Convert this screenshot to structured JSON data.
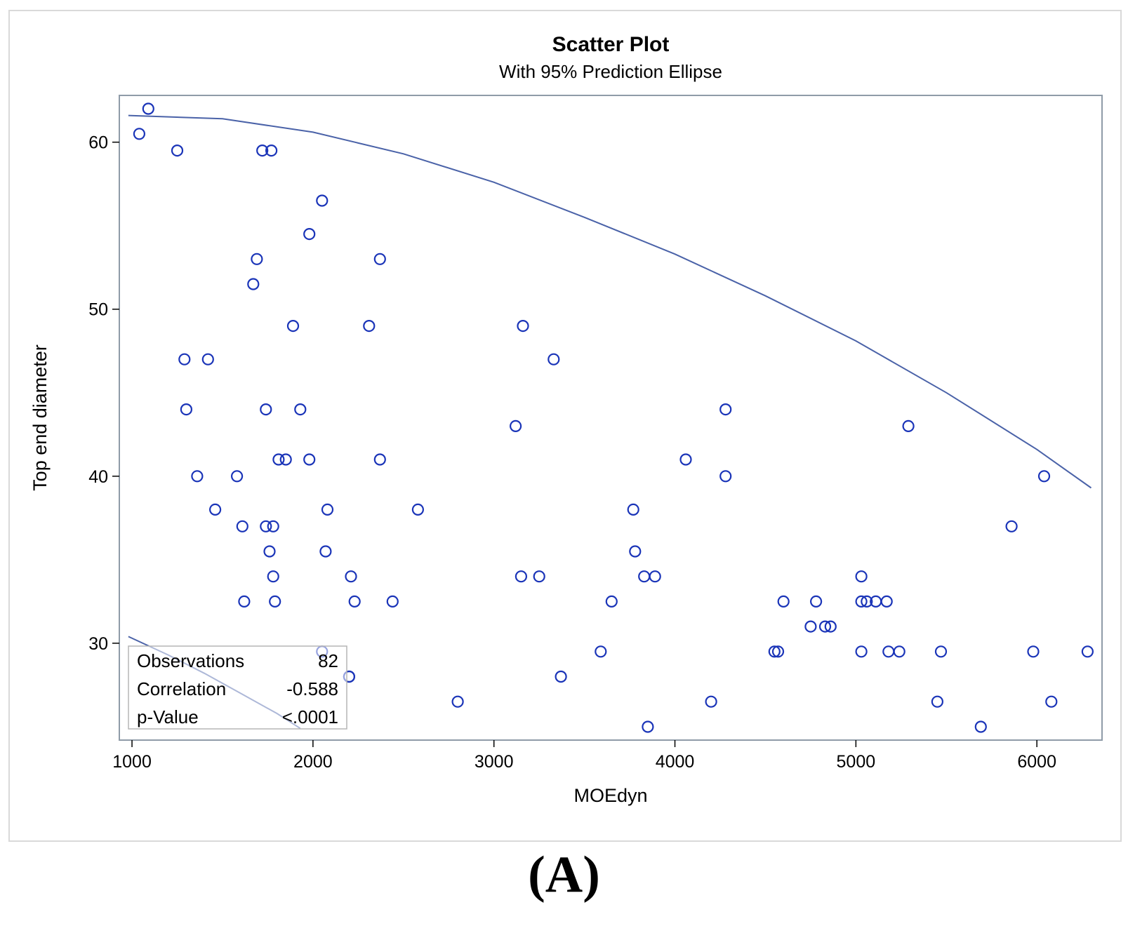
{
  "chart_data": {
    "type": "scatter",
    "title": "Scatter Plot",
    "subtitle": "With 95% Prediction Ellipse",
    "xlabel": "MOEdyn",
    "ylabel": "Top end diameter",
    "xlim": [
      930,
      6360
    ],
    "ylim": [
      24.2,
      62.8
    ],
    "xticks": [
      1000,
      2000,
      3000,
      4000,
      5000,
      6000
    ],
    "yticks": [
      30,
      40,
      50,
      60
    ],
    "grid": false,
    "marker_color": "#1a34b8",
    "line_color": "#4a62a8",
    "series": [
      {
        "name": "Observations",
        "points": [
          [
            1040,
            60.5
          ],
          [
            1090,
            62
          ],
          [
            1250,
            59.5
          ],
          [
            1290,
            47
          ],
          [
            1300,
            44
          ],
          [
            1360,
            40
          ],
          [
            1420,
            47
          ],
          [
            1460,
            38
          ],
          [
            1580,
            40
          ],
          [
            1610,
            37
          ],
          [
            1620,
            32.5
          ],
          [
            1670,
            51.5
          ],
          [
            1690,
            53
          ],
          [
            1720,
            59.5
          ],
          [
            1740,
            44
          ],
          [
            1740,
            37
          ],
          [
            1760,
            35.5
          ],
          [
            1770,
            59.5
          ],
          [
            1780,
            34
          ],
          [
            1780,
            37
          ],
          [
            1790,
            32.5
          ],
          [
            1810,
            41
          ],
          [
            1850,
            41
          ],
          [
            1890,
            49
          ],
          [
            1930,
            44
          ],
          [
            1980,
            54.5
          ],
          [
            1980,
            41
          ],
          [
            2050,
            56.5
          ],
          [
            2050,
            29.5
          ],
          [
            2070,
            35.5
          ],
          [
            2080,
            38
          ],
          [
            2200,
            28
          ],
          [
            2210,
            34
          ],
          [
            2230,
            32.5
          ],
          [
            2310,
            49
          ],
          [
            2370,
            53
          ],
          [
            2370,
            41
          ],
          [
            2440,
            32.5
          ],
          [
            2580,
            38
          ],
          [
            2800,
            26.5
          ],
          [
            3120,
            43
          ],
          [
            3150,
            34
          ],
          [
            3160,
            49
          ],
          [
            3250,
            34
          ],
          [
            3330,
            47
          ],
          [
            3370,
            28
          ],
          [
            3590,
            29.5
          ],
          [
            3650,
            32.5
          ],
          [
            3770,
            38
          ],
          [
            3780,
            35.5
          ],
          [
            3830,
            34
          ],
          [
            3850,
            25
          ],
          [
            3890,
            34
          ],
          [
            4060,
            41
          ],
          [
            4200,
            26.5
          ],
          [
            4280,
            44
          ],
          [
            4280,
            40
          ],
          [
            4550,
            29.5
          ],
          [
            4570,
            29.5
          ],
          [
            4600,
            32.5
          ],
          [
            4750,
            31
          ],
          [
            4780,
            32.5
          ],
          [
            4830,
            31
          ],
          [
            4860,
            31
          ],
          [
            5030,
            34
          ],
          [
            5030,
            32.5
          ],
          [
            5030,
            29.5
          ],
          [
            5060,
            32.5
          ],
          [
            5110,
            32.5
          ],
          [
            5170,
            32.5
          ],
          [
            5180,
            29.5
          ],
          [
            5240,
            29.5
          ],
          [
            5290,
            43
          ],
          [
            5450,
            26.5
          ],
          [
            5470,
            29.5
          ],
          [
            5690,
            25
          ],
          [
            5860,
            37
          ],
          [
            5980,
            29.5
          ],
          [
            6040,
            40
          ],
          [
            6080,
            26.5
          ],
          [
            6280,
            29.5
          ],
          [
            2200,
            28
          ]
        ]
      }
    ],
    "prediction_ellipse": {
      "label": "95% Prediction Ellipse",
      "upper_arc": [
        [
          980,
          61.6
        ],
        [
          1500,
          61.4
        ],
        [
          2000,
          60.6
        ],
        [
          2500,
          59.3
        ],
        [
          3000,
          57.6
        ],
        [
          3500,
          55.5
        ],
        [
          4000,
          53.3
        ],
        [
          4500,
          50.8
        ],
        [
          5000,
          48.1
        ],
        [
          5500,
          45.0
        ],
        [
          6000,
          41.6
        ],
        [
          6300,
          39.3
        ]
      ],
      "lower_arc": [
        [
          980,
          30.4
        ],
        [
          1200,
          29.3
        ],
        [
          1400,
          28.2
        ],
        [
          1600,
          27.0
        ],
        [
          1800,
          25.8
        ],
        [
          1930,
          24.9
        ]
      ]
    },
    "stats_box": {
      "placement": "bottom-left",
      "rows": [
        {
          "label": "Observations",
          "value": "82"
        },
        {
          "label": "Correlation",
          "value": "-0.588"
        },
        {
          "label": "p-Value",
          "value": "<.0001"
        }
      ]
    }
  },
  "figure": {
    "panel_label": "(A)"
  }
}
